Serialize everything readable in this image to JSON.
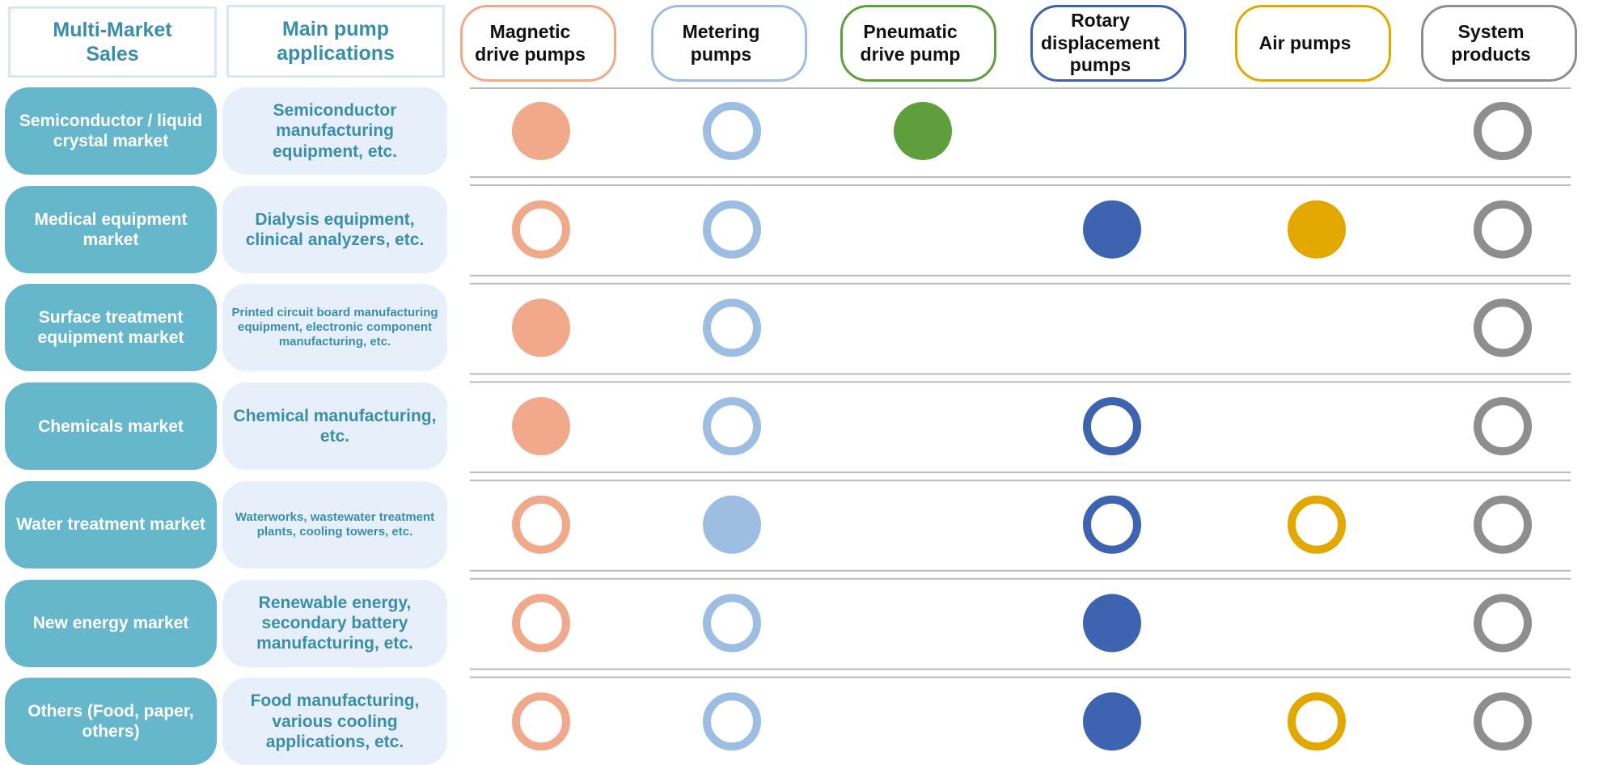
{
  "header": {
    "market_title": "Multi-Market Sales",
    "applications_title": "Main pump applications"
  },
  "columns": [
    {
      "label": "Magnetic drive pumps",
      "color": "#f0a98a"
    },
    {
      "label": "Metering pumps",
      "color": "#9dbde3"
    },
    {
      "label": "Pneumatic drive pump",
      "color": "#5e9e3c"
    },
    {
      "label": "Rotary displacement pumps",
      "color": "#3e63b0"
    },
    {
      "label": "Air pumps",
      "color": "#e3a800"
    },
    {
      "label": "System products",
      "color": "#8e8e8e"
    }
  ],
  "rows": [
    {
      "market": "Semiconductor / liquid crystal market",
      "applications": "Semiconductor manufacturing equipment, etc.",
      "marks": [
        "filled",
        "hollow",
        "filled",
        null,
        null,
        "hollow"
      ]
    },
    {
      "market": "Medical equipment market",
      "applications": "Dialysis equipment, clinical analyzers, etc.",
      "marks": [
        "hollow",
        "hollow",
        null,
        "filled",
        "filled",
        "hollow"
      ]
    },
    {
      "market": "Surface treatment equipment market",
      "applications": "Printed circuit board manufacturing equipment, electronic component manufacturing, etc.",
      "marks": [
        "filled",
        "hollow",
        null,
        null,
        null,
        "hollow"
      ]
    },
    {
      "market": "Chemicals market",
      "applications": "Chemical manufacturing, etc.",
      "marks": [
        "filled",
        "hollow",
        null,
        "hollow",
        null,
        "hollow"
      ]
    },
    {
      "market": "Water treatment market",
      "applications": "Waterworks, wastewater treatment plants, cooling towers, etc.",
      "marks": [
        "hollow",
        "filled",
        null,
        "hollow",
        "hollow",
        "hollow"
      ]
    },
    {
      "market": "New energy market",
      "applications": "Renewable energy, secondary battery manufacturing, etc.",
      "marks": [
        "hollow",
        "hollow",
        null,
        "filled",
        null,
        "hollow"
      ]
    },
    {
      "market": "Others (Food, paper, others)",
      "applications": "Food manufacturing, various cooling applications, etc.",
      "marks": [
        "hollow",
        "hollow",
        null,
        "filled",
        "hollow",
        "hollow"
      ]
    }
  ]
}
